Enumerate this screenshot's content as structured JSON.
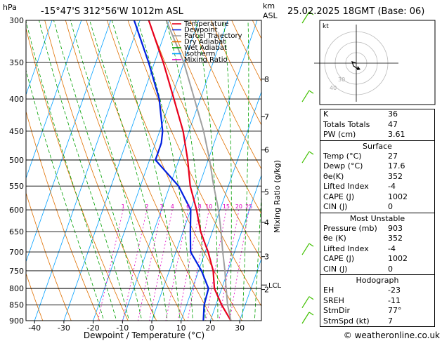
{
  "header": {
    "hpa_label": "hPa",
    "location": "-15°47'S 312°56'W 1012m ASL",
    "km_label": "km",
    "asl_label": "ASL",
    "datetime": "25.02.2025 18GMT (Base: 06)"
  },
  "legend": [
    {
      "label": "Temperature",
      "color": "#e8001c"
    },
    {
      "label": "Dewpoint",
      "color": "#0020e0"
    },
    {
      "label": "Parcel Trajectory",
      "color": "#a0a0a0"
    },
    {
      "label": "Dry Adiabat",
      "color": "#e07000"
    },
    {
      "label": "Wet Adiabat",
      "color": "#00a000"
    },
    {
      "label": "Isotherm",
      "color": "#00a0ff"
    },
    {
      "label": "Mixing Ratio",
      "color": "#e000c0"
    }
  ],
  "hodograph": {
    "kt_label": "kt",
    "ring_labels": [
      "40",
      "30"
    ]
  },
  "indices": {
    "top": [
      {
        "label": "K",
        "value": "36"
      },
      {
        "label": "Totals Totals",
        "value": "47"
      },
      {
        "label": "PW (cm)",
        "value": "3.61"
      }
    ],
    "surface": {
      "title": "Surface",
      "rows": [
        {
          "label": "Temp (°C)",
          "value": "27"
        },
        {
          "label": "Dewp (°C)",
          "value": "17.6"
        },
        {
          "label": "θe(K)",
          "value": "352"
        },
        {
          "label": "Lifted Index",
          "value": "-4"
        },
        {
          "label": "CAPE (J)",
          "value": "1002"
        },
        {
          "label": "CIN (J)",
          "value": "0"
        }
      ]
    },
    "most_unstable": {
      "title": "Most Unstable",
      "rows": [
        {
          "label": "Pressure (mb)",
          "value": "903"
        },
        {
          "label": "θe (K)",
          "value": "352"
        },
        {
          "label": "Lifted Index",
          "value": "-4"
        },
        {
          "label": "CAPE (J)",
          "value": "1002"
        },
        {
          "label": "CIN (J)",
          "value": "0"
        }
      ]
    },
    "hodograph": {
      "title": "Hodograph",
      "rows": [
        {
          "label": "EH",
          "value": "-23"
        },
        {
          "label": "SREH",
          "value": "-11"
        },
        {
          "label": "StmDir",
          "value": "77°"
        },
        {
          "label": "StmSpd (kt)",
          "value": "7"
        }
      ]
    }
  },
  "footer": {
    "copyright": "© weatheronline.co.uk"
  },
  "chart_data": {
    "type": "line",
    "title": "-15°47'S 312°56'W 1012m ASL",
    "xlabel": "Dewpoint / Temperature (°C)",
    "ylabel": "hPa",
    "right_label": "Mixing Ratio (g/kg)",
    "xlim": [
      -45,
      37
    ],
    "ylim": [
      900,
      300
    ],
    "y_scale": "log",
    "pressure_ticks": [
      300,
      350,
      400,
      450,
      500,
      550,
      600,
      650,
      700,
      750,
      800,
      850,
      900
    ],
    "temperature_ticks": [
      -40,
      -30,
      -20,
      -10,
      0,
      10,
      20,
      30
    ],
    "height_ticks_km": [
      {
        "label": "8",
        "p": 372
      },
      {
        "label": "7",
        "p": 427
      },
      {
        "label": "6",
        "p": 482
      },
      {
        "label": "5",
        "p": 562
      },
      {
        "label": "4",
        "p": 628
      },
      {
        "label": "3",
        "p": 712
      },
      {
        "label": "2",
        "p": 803
      }
    ],
    "lcl": {
      "label": "LCL",
      "p": 790
    },
    "mixing_ratio_labels": [
      "1",
      "2",
      "3",
      "4",
      "6",
      "8",
      "10",
      "15",
      "20",
      "25"
    ],
    "mixing_ratio_values": [
      1,
      2,
      3,
      4,
      6,
      8,
      10,
      15,
      20,
      25
    ],
    "series": [
      {
        "name": "Temperature",
        "color": "#e8001c",
        "points": [
          [
            900,
            27
          ],
          [
            850,
            22
          ],
          [
            800,
            17.5
          ],
          [
            750,
            15
          ],
          [
            700,
            11
          ],
          [
            650,
            6
          ],
          [
            600,
            2
          ],
          [
            550,
            -3
          ],
          [
            500,
            -7
          ],
          [
            450,
            -12
          ],
          [
            400,
            -19
          ],
          [
            350,
            -27
          ],
          [
            300,
            -37
          ]
        ]
      },
      {
        "name": "Dewpoint",
        "color": "#0020e0",
        "points": [
          [
            900,
            17.6
          ],
          [
            850,
            16
          ],
          [
            800,
            15.5
          ],
          [
            750,
            11
          ],
          [
            700,
            5
          ],
          [
            650,
            2.5
          ],
          [
            600,
            0
          ],
          [
            550,
            -7
          ],
          [
            500,
            -18
          ],
          [
            470,
            -18
          ],
          [
            450,
            -19
          ],
          [
            400,
            -24
          ],
          [
            350,
            -32
          ],
          [
            300,
            -42
          ]
        ]
      },
      {
        "name": "Parcel Trajectory",
        "color": "#a0a0a0",
        "points": [
          [
            900,
            27
          ],
          [
            850,
            24
          ],
          [
            790,
            21
          ],
          [
            750,
            19
          ],
          [
            700,
            16
          ],
          [
            650,
            13
          ],
          [
            600,
            9.5
          ],
          [
            550,
            5
          ],
          [
            500,
            0.5
          ],
          [
            450,
            -5
          ],
          [
            400,
            -12
          ],
          [
            350,
            -20
          ],
          [
            300,
            -31
          ]
        ]
      }
    ],
    "wind_barbs_p": [
      300,
      400,
      500,
      700,
      850,
      900
    ]
  }
}
